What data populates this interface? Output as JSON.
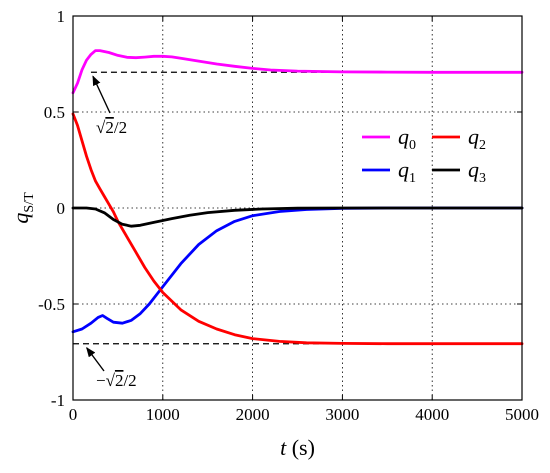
{
  "chart_data": {
    "type": "line",
    "xlabel": {
      "var": "t",
      "unit": "(s)"
    },
    "ylabel": {
      "var": "q",
      "sub": "S/T"
    },
    "xlim": [
      0,
      5000
    ],
    "ylim": [
      -1,
      1
    ],
    "xticks": [
      0,
      1000,
      2000,
      3000,
      4000,
      5000
    ],
    "xtick_labels": [
      "0",
      "1000",
      "2000",
      "3000",
      "4000",
      "5000"
    ],
    "yticks": [
      -1,
      -0.5,
      0,
      0.5,
      1
    ],
    "ytick_labels": [
      "-1",
      "-0.5",
      "0",
      "0.5",
      "1"
    ],
    "grid": "dotted",
    "legend_position": "upper-right",
    "series": [
      {
        "name": "q",
        "sub": "0",
        "color": "#ff00ff",
        "points": [
          [
            0,
            0.6
          ],
          [
            50,
            0.65
          ],
          [
            100,
            0.72
          ],
          [
            150,
            0.77
          ],
          [
            200,
            0.8
          ],
          [
            250,
            0.82
          ],
          [
            300,
            0.82
          ],
          [
            400,
            0.81
          ],
          [
            500,
            0.795
          ],
          [
            600,
            0.785
          ],
          [
            700,
            0.783
          ],
          [
            800,
            0.786
          ],
          [
            900,
            0.79
          ],
          [
            1000,
            0.79
          ],
          [
            1100,
            0.787
          ],
          [
            1200,
            0.78
          ],
          [
            1400,
            0.765
          ],
          [
            1600,
            0.75
          ],
          [
            1800,
            0.738
          ],
          [
            2000,
            0.727
          ],
          [
            2200,
            0.719
          ],
          [
            2500,
            0.713
          ],
          [
            3000,
            0.709
          ],
          [
            3500,
            0.708
          ],
          [
            4000,
            0.707
          ],
          [
            5000,
            0.707
          ]
        ]
      },
      {
        "name": "q",
        "sub": "1",
        "color": "#0000ff",
        "points": [
          [
            0,
            -0.645
          ],
          [
            100,
            -0.63
          ],
          [
            200,
            -0.6
          ],
          [
            280,
            -0.57
          ],
          [
            330,
            -0.56
          ],
          [
            380,
            -0.575
          ],
          [
            450,
            -0.595
          ],
          [
            550,
            -0.6
          ],
          [
            650,
            -0.585
          ],
          [
            750,
            -0.55
          ],
          [
            850,
            -0.5
          ],
          [
            1000,
            -0.41
          ],
          [
            1200,
            -0.29
          ],
          [
            1400,
            -0.19
          ],
          [
            1600,
            -0.118
          ],
          [
            1800,
            -0.07
          ],
          [
            2000,
            -0.04
          ],
          [
            2300,
            -0.018
          ],
          [
            2600,
            -0.008
          ],
          [
            3000,
            -0.002
          ],
          [
            3500,
            0
          ],
          [
            5000,
            0
          ]
        ]
      },
      {
        "name": "q",
        "sub": "2",
        "color": "#ff0000",
        "points": [
          [
            0,
            0.49
          ],
          [
            50,
            0.43
          ],
          [
            100,
            0.35
          ],
          [
            150,
            0.27
          ],
          [
            200,
            0.2
          ],
          [
            250,
            0.14
          ],
          [
            300,
            0.1
          ],
          [
            350,
            0.06
          ],
          [
            400,
            0.02
          ],
          [
            450,
            -0.02
          ],
          [
            500,
            -0.07
          ],
          [
            600,
            -0.15
          ],
          [
            700,
            -0.23
          ],
          [
            800,
            -0.31
          ],
          [
            900,
            -0.38
          ],
          [
            1000,
            -0.44
          ],
          [
            1200,
            -0.53
          ],
          [
            1400,
            -0.59
          ],
          [
            1600,
            -0.63
          ],
          [
            1800,
            -0.66
          ],
          [
            2000,
            -0.68
          ],
          [
            2300,
            -0.695
          ],
          [
            2600,
            -0.702
          ],
          [
            3000,
            -0.705
          ],
          [
            3500,
            -0.707
          ],
          [
            5000,
            -0.707
          ]
        ]
      },
      {
        "name": "q",
        "sub": "3",
        "color": "#000000",
        "points": [
          [
            0,
            0
          ],
          [
            150,
            0
          ],
          [
            250,
            -0.005
          ],
          [
            350,
            -0.025
          ],
          [
            450,
            -0.06
          ],
          [
            550,
            -0.085
          ],
          [
            650,
            -0.095
          ],
          [
            750,
            -0.09
          ],
          [
            900,
            -0.075
          ],
          [
            1100,
            -0.055
          ],
          [
            1300,
            -0.038
          ],
          [
            1500,
            -0.024
          ],
          [
            1800,
            -0.012
          ],
          [
            2100,
            -0.005
          ],
          [
            2500,
            -0.001
          ],
          [
            3000,
            0
          ],
          [
            5000,
            0
          ]
        ]
      }
    ],
    "reference_lines": [
      {
        "y": 0.7071,
        "x_start": 200,
        "x_end": 5000,
        "style": "dashed"
      },
      {
        "y": -0.7071,
        "x_start": 0,
        "x_end": 5000,
        "style": "dashed"
      }
    ],
    "annotations": [
      {
        "prefix": "",
        "radical": "2",
        "suffix": "/2",
        "arrow_to": [
          200,
          0.7071
        ]
      },
      {
        "prefix": "−",
        "radical": "2",
        "suffix": "/2",
        "arrow_to": [
          130,
          -0.7071
        ]
      }
    ]
  }
}
